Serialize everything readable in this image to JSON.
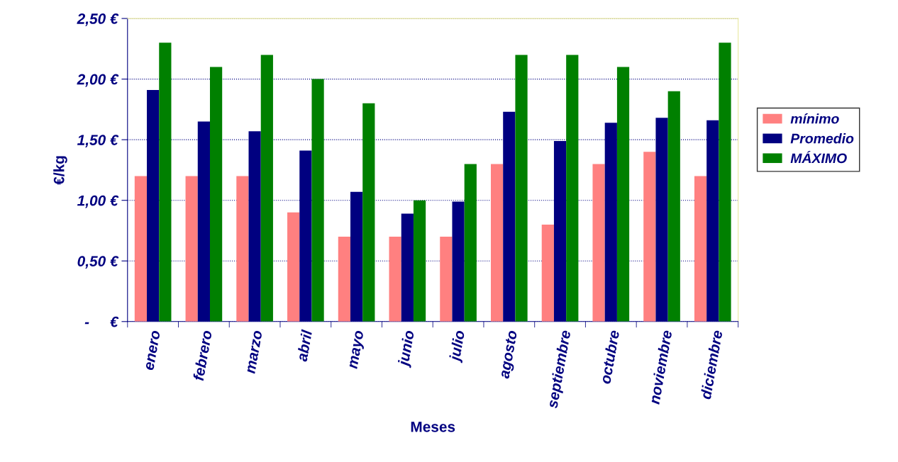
{
  "chart_data": {
    "type": "bar",
    "xlabel": "Meses",
    "ylabel": "€/kg",
    "categories": [
      "enero",
      "febrero",
      "marzo",
      "abril",
      "mayo",
      "junio",
      "julio",
      "agosto",
      "septiembre",
      "octubre",
      "noviembre",
      "diciembre"
    ],
    "series": [
      {
        "name": "mínimo",
        "color": "#ff8080",
        "values": [
          1.2,
          1.2,
          1.2,
          0.9,
          0.7,
          0.7,
          0.7,
          1.3,
          0.8,
          1.3,
          1.4,
          1.2
        ]
      },
      {
        "name": "Promedio",
        "color": "#000080",
        "values": [
          1.91,
          1.65,
          1.57,
          1.41,
          1.07,
          0.89,
          0.99,
          1.73,
          1.49,
          1.64,
          1.68,
          1.66
        ]
      },
      {
        "name": "MÁXIMO",
        "color": "#008000",
        "values": [
          2.3,
          2.1,
          2.2,
          2.0,
          1.8,
          1.0,
          1.3,
          2.2,
          2.2,
          2.1,
          1.9,
          2.3
        ]
      }
    ],
    "ylim": [
      0,
      2.5
    ],
    "yticks": [
      {
        "value": 0,
        "label": "-     €"
      },
      {
        "value": 0.5,
        "label": "0,50 €"
      },
      {
        "value": 1.0,
        "label": "1,00 €"
      },
      {
        "value": 1.5,
        "label": "1,50 €"
      },
      {
        "value": 2.0,
        "label": "2,00 €"
      },
      {
        "value": 2.5,
        "label": "2,50 €"
      }
    ],
    "grid": "y",
    "legend": "right"
  }
}
